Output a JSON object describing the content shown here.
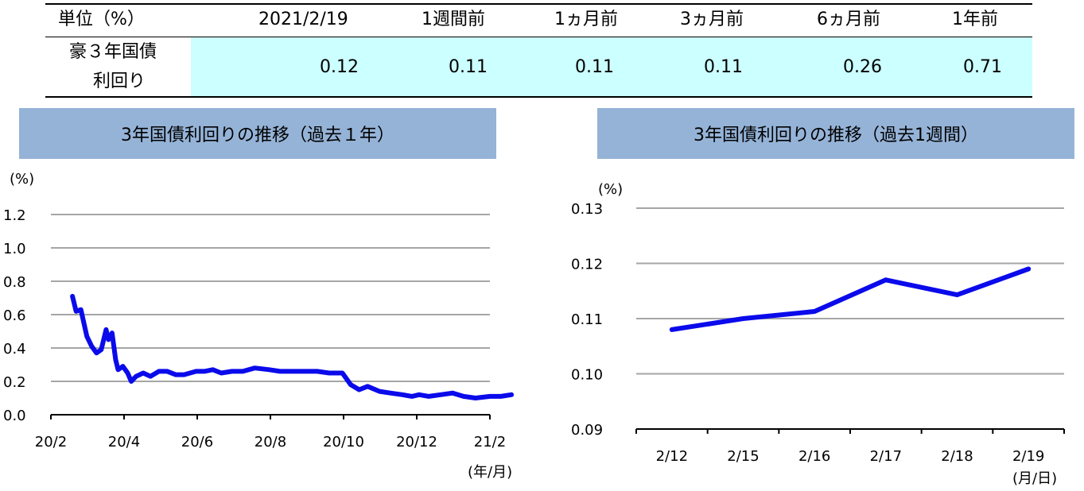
{
  "table": {
    "corner_label": "単位（%）",
    "headers": [
      "2021/2/19",
      "1週間前",
      "1ヵ月前",
      "3ヵ月前",
      "6ヵ月前",
      "1年前"
    ],
    "row_label_line1": "豪３年国債",
    "row_label_line2": "利回り",
    "values": [
      "0.12",
      "0.11",
      "0.11",
      "0.11",
      "0.26",
      "0.71"
    ],
    "highlight_color": "#ccffff"
  },
  "panels": {
    "left_title": "3年国債利回りの推移（過去１年）",
    "right_title": "3年国債利回りの推移（過去1週間）",
    "title_bg_color": "#95b3d7"
  },
  "chart_data": [
    {
      "type": "line",
      "ylabel": "(%)",
      "xlabel": "(年/月)",
      "ylim": [
        0.0,
        1.2
      ],
      "y_ticks": [
        "0.0",
        "0.2",
        "0.4",
        "0.6",
        "0.8",
        "1.0",
        "1.2"
      ],
      "x_ticks": [
        "20/2",
        "20/4",
        "20/6",
        "20/8",
        "20/10",
        "20/12",
        "21/2"
      ],
      "grid": true,
      "line_color": "#0a0aeb",
      "series": [
        {
          "name": "",
          "points": [
            [
              "2020-02-19",
              0.71
            ],
            [
              "2020-02-22",
              0.62
            ],
            [
              "2020-02-26",
              0.63
            ],
            [
              "2020-03-02",
              0.47
            ],
            [
              "2020-03-06",
              0.41
            ],
            [
              "2020-03-10",
              0.37
            ],
            [
              "2020-03-14",
              0.39
            ],
            [
              "2020-03-18",
              0.51
            ],
            [
              "2020-03-20",
              0.45
            ],
            [
              "2020-03-23",
              0.49
            ],
            [
              "2020-03-26",
              0.33
            ],
            [
              "2020-03-28",
              0.27
            ],
            [
              "2020-04-01",
              0.29
            ],
            [
              "2020-04-05",
              0.25
            ],
            [
              "2020-04-08",
              0.2
            ],
            [
              "2020-04-12",
              0.23
            ],
            [
              "2020-04-18",
              0.25
            ],
            [
              "2020-04-24",
              0.23
            ],
            [
              "2020-05-01",
              0.26
            ],
            [
              "2020-05-08",
              0.26
            ],
            [
              "2020-05-15",
              0.24
            ],
            [
              "2020-05-22",
              0.24
            ],
            [
              "2020-06-01",
              0.26
            ],
            [
              "2020-06-08",
              0.26
            ],
            [
              "2020-06-15",
              0.27
            ],
            [
              "2020-06-22",
              0.25
            ],
            [
              "2020-07-01",
              0.26
            ],
            [
              "2020-07-10",
              0.26
            ],
            [
              "2020-07-20",
              0.28
            ],
            [
              "2020-08-01",
              0.27
            ],
            [
              "2020-08-10",
              0.26
            ],
            [
              "2020-08-20",
              0.26
            ],
            [
              "2020-09-01",
              0.26
            ],
            [
              "2020-09-10",
              0.26
            ],
            [
              "2020-09-20",
              0.25
            ],
            [
              "2020-10-01",
              0.25
            ],
            [
              "2020-10-08",
              0.18
            ],
            [
              "2020-10-15",
              0.15
            ],
            [
              "2020-10-22",
              0.17
            ],
            [
              "2020-11-01",
              0.14
            ],
            [
              "2020-11-10",
              0.13
            ],
            [
              "2020-11-20",
              0.12
            ],
            [
              "2020-11-28",
              0.11
            ],
            [
              "2020-12-04",
              0.12
            ],
            [
              "2020-12-12",
              0.11
            ],
            [
              "2020-12-22",
              0.12
            ],
            [
              "2021-01-01",
              0.13
            ],
            [
              "2021-01-10",
              0.11
            ],
            [
              "2021-01-20",
              0.1
            ],
            [
              "2021-02-01",
              0.11
            ],
            [
              "2021-02-10",
              0.11
            ],
            [
              "2021-02-19",
              0.12
            ]
          ]
        }
      ]
    },
    {
      "type": "line",
      "ylabel": "(%)",
      "xlabel": "(月/日)",
      "ylim": [
        0.09,
        0.13
      ],
      "y_ticks": [
        "0.09",
        "0.10",
        "0.11",
        "0.12",
        "0.13"
      ],
      "categories": [
        "2/12",
        "2/15",
        "2/16",
        "2/17",
        "2/18",
        "2/19"
      ],
      "grid": true,
      "line_color": "#0a0aeb",
      "series": [
        {
          "name": "",
          "values": [
            0.108,
            0.11,
            0.1113,
            0.117,
            0.1143,
            0.119
          ]
        }
      ]
    }
  ]
}
